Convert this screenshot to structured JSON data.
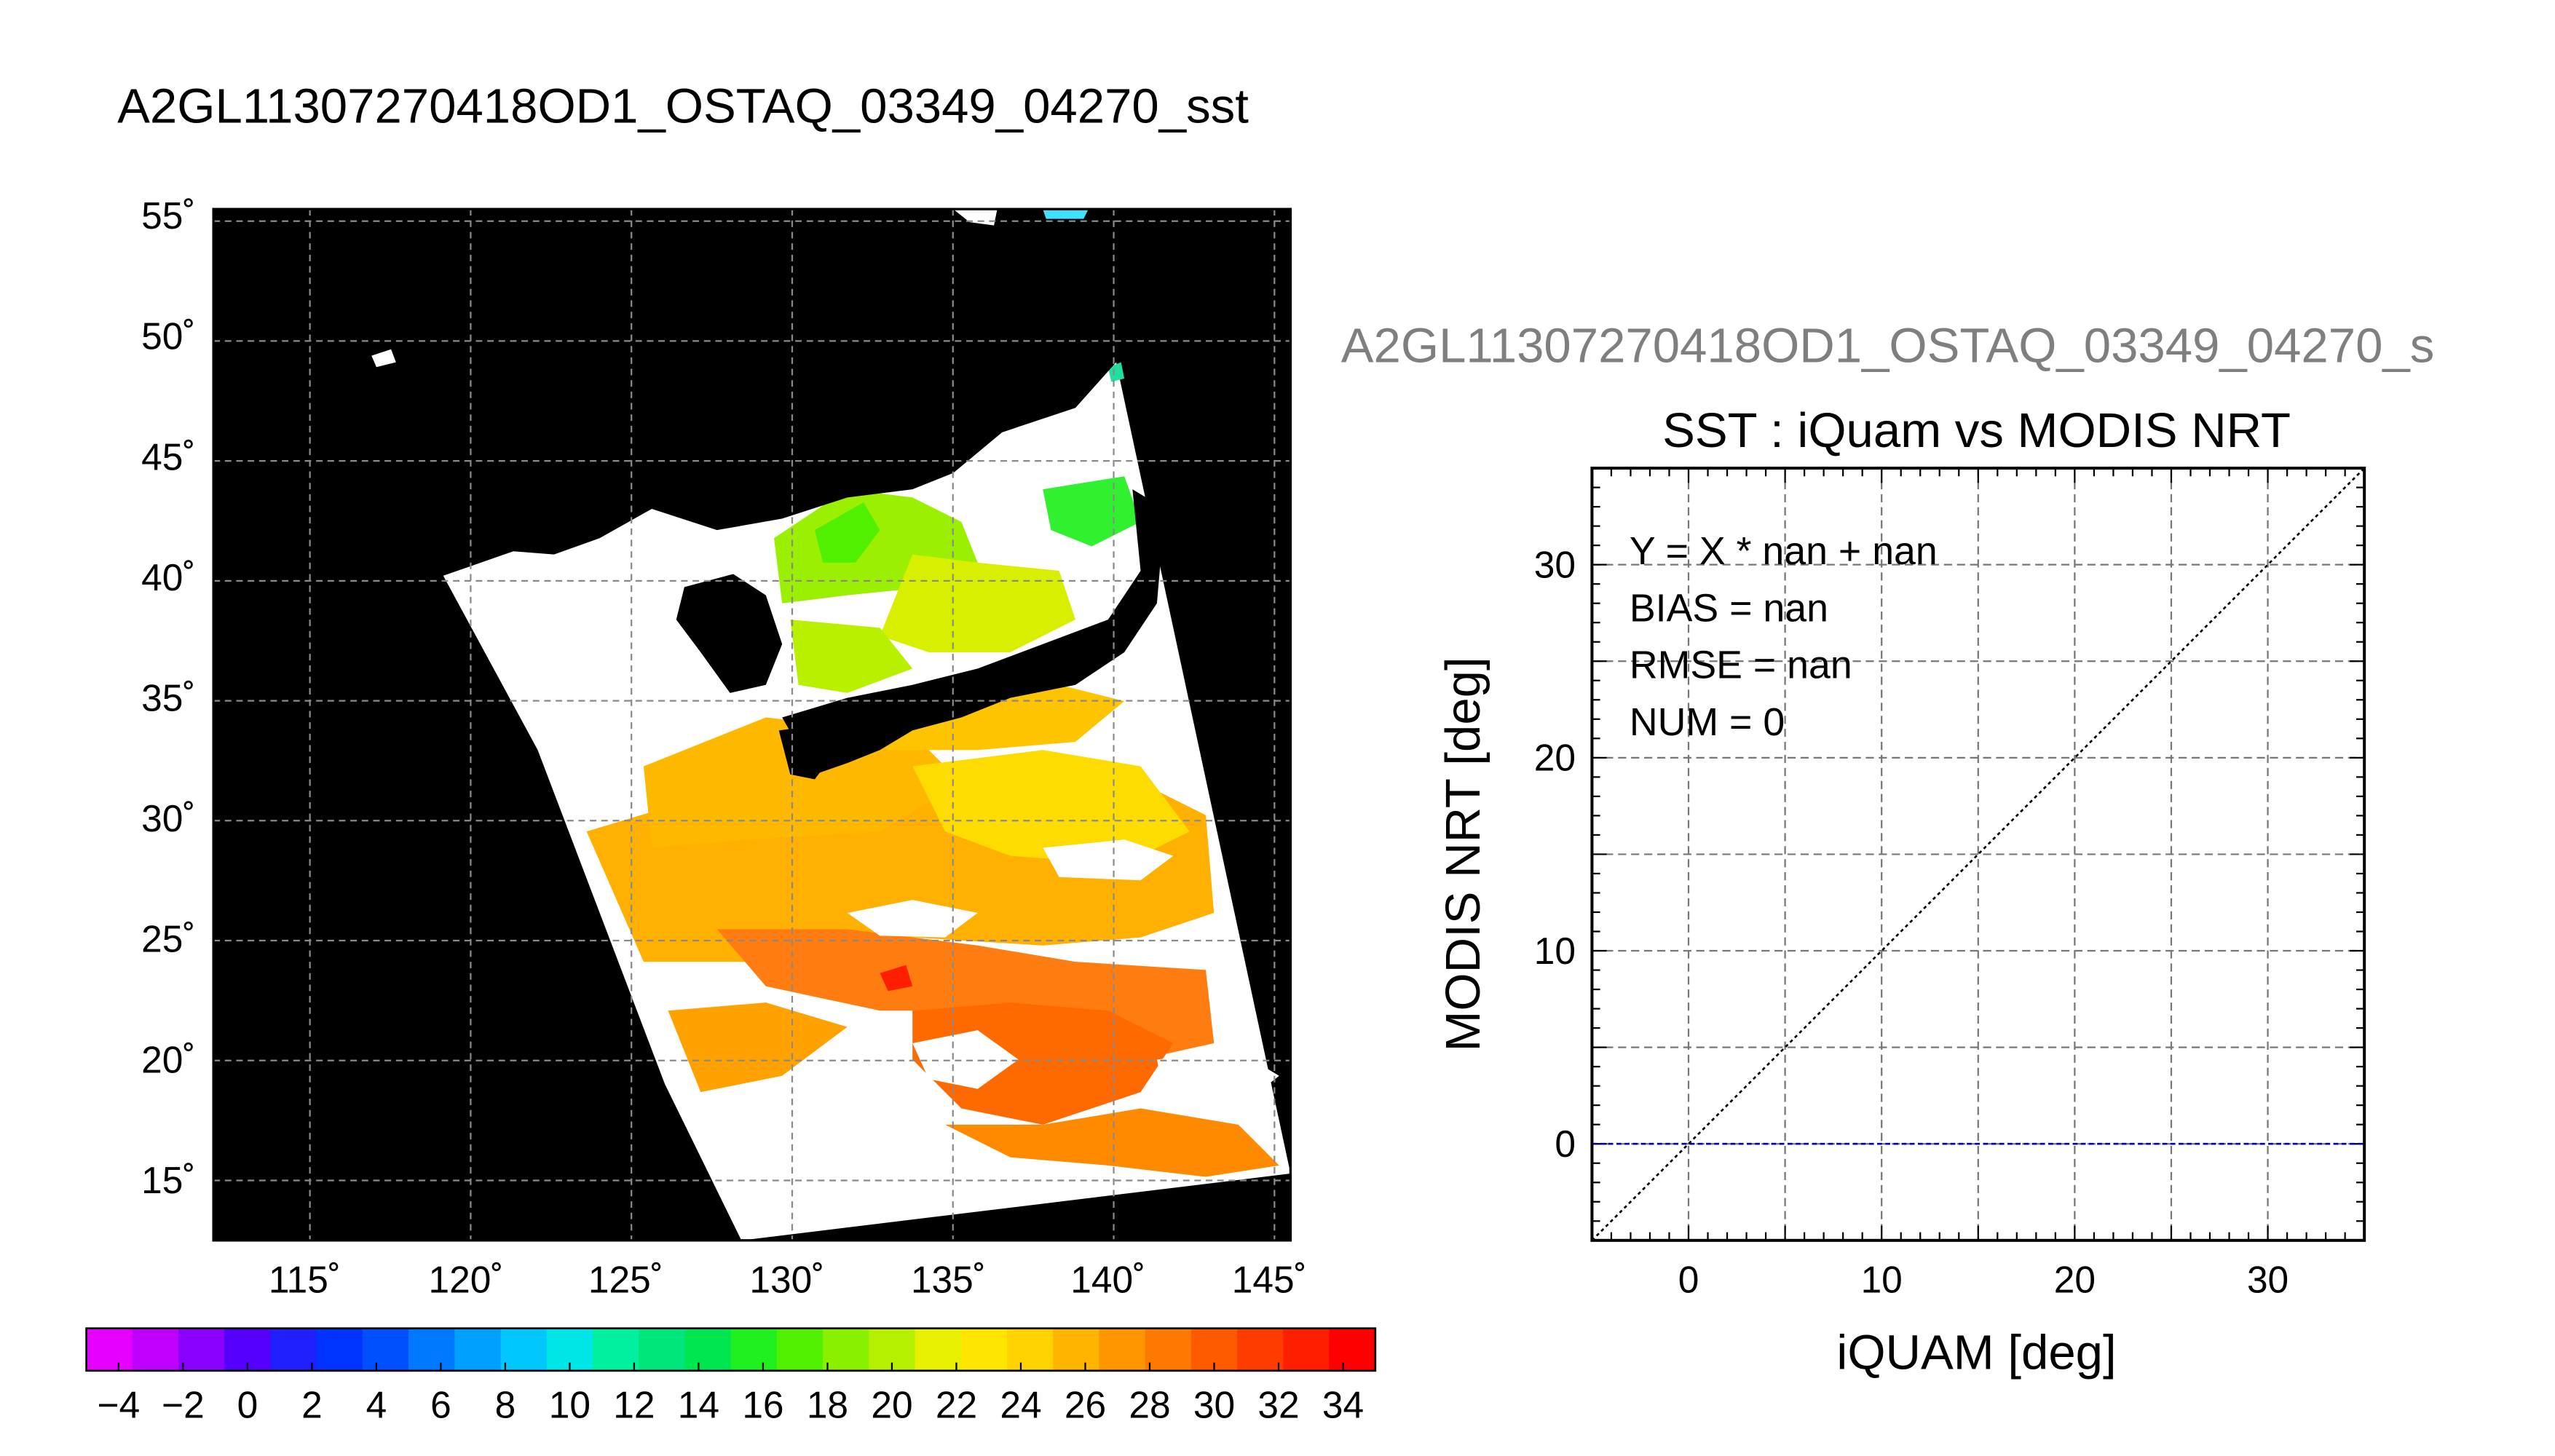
{
  "map_panel": {
    "title": "A2GL11307270418OD1_OSTAQ_03349_04270_sst",
    "lat_ticks": [
      "55˚",
      "50˚",
      "45˚",
      "40˚",
      "35˚",
      "30˚",
      "25˚",
      "20˚",
      "15˚"
    ],
    "lon_ticks": [
      "115˚",
      "120˚",
      "125˚",
      "130˚",
      "135˚",
      "140˚",
      "145˚"
    ],
    "lat_range": [
      12.5,
      55.5
    ],
    "lon_range": [
      112,
      145.5
    ]
  },
  "colorbar": {
    "tick_labels": [
      "−4",
      "−2",
      "0",
      "2",
      "4",
      "6",
      "8",
      "10",
      "12",
      "14",
      "16",
      "18",
      "20",
      "22",
      "24",
      "26",
      "28",
      "30",
      "32",
      "34"
    ],
    "range": [
      -5,
      35
    ],
    "colors": [
      "#e600ff",
      "#c000ff",
      "#8a00ff",
      "#5500ff",
      "#2020ff",
      "#0033ff",
      "#0050ff",
      "#0078ff",
      "#00a0ff",
      "#00c8ff",
      "#00e6e6",
      "#00f0a0",
      "#00e67a",
      "#00e650",
      "#20f020",
      "#50f000",
      "#8af000",
      "#b4f000",
      "#e6f000",
      "#ffe600",
      "#ffd200",
      "#ffb400",
      "#ff9600",
      "#ff7800",
      "#ff5a00",
      "#ff3c00",
      "#ff1e00",
      "#ff0000"
    ]
  },
  "scatter_panel": {
    "file_title": "A2GL11307270418OD1_OSTAQ_03349_04270_s",
    "file_title_color": "#7f7f7f",
    "stats": [
      "Y = X * nan + nan",
      "BIAS = nan",
      "RMSE = nan",
      "NUM = 0"
    ]
  },
  "chart_data": {
    "type": "scatter",
    "title": "SST : iQuam vs MODIS NRT",
    "xlabel": "iQUAM [deg]",
    "ylabel": "MODIS NRT [deg]",
    "xlim": [
      -5,
      35
    ],
    "ylim": [
      -5,
      35
    ],
    "x_ticks": [
      0,
      10,
      20,
      30
    ],
    "y_ticks": [
      0,
      10,
      20,
      30
    ],
    "grid": true,
    "series": [],
    "reference_lines": [
      {
        "kind": "one-to-one",
        "style": "dotted",
        "color": "#000000"
      },
      {
        "kind": "horizontal",
        "y": 0,
        "style": "dashed",
        "color": "#0000aa"
      }
    ]
  }
}
